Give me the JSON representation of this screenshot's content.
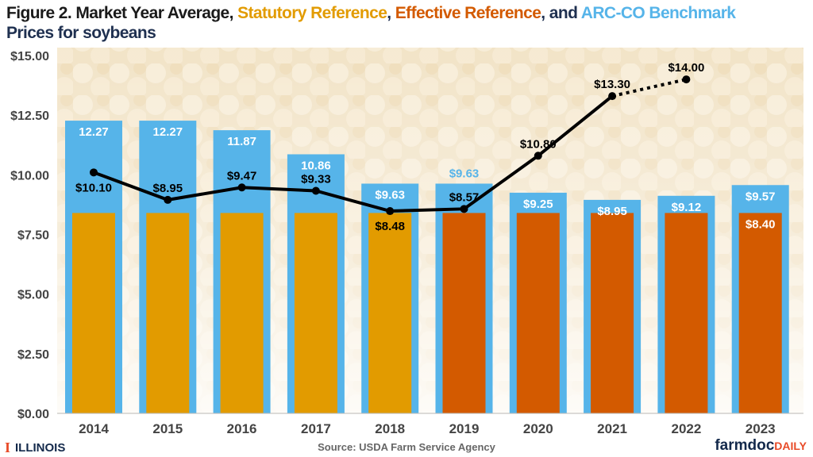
{
  "title": {
    "part1": "Figure 2. Market Year Average, ",
    "statutory": "Statutory Reference",
    "sep1": ", ",
    "effective": "Effective Reference",
    "sep2": ", and ",
    "arc": "ARC-CO Benchmark",
    "part2": "Prices for soybeans"
  },
  "footer": {
    "logo_left": "ILLINOIS",
    "source": "Source: USDA Farm Service Agency",
    "logo_right_a": "farmdoc",
    "logo_right_b": "DAILY"
  },
  "colors": {
    "statutory": "#e29b00",
    "effective": "#d35a00",
    "arc": "#56b4e9",
    "mya": "#000000",
    "title_dark": "#1f3050"
  },
  "chart_data": {
    "type": "bar+line",
    "categories": [
      "2014",
      "2015",
      "2016",
      "2017",
      "2018",
      "2019",
      "2020",
      "2021",
      "2022",
      "2023"
    ],
    "ylim": [
      0,
      15
    ],
    "yticks": [
      "$0.00",
      "$2.50",
      "$5.00",
      "$7.50",
      "$10.00",
      "$12.50",
      "$15.00"
    ],
    "ytick_values": [
      0,
      2.5,
      5,
      7.5,
      10,
      12.5,
      15
    ],
    "series": [
      {
        "key": "arc",
        "values": [
          12.27,
          12.27,
          11.87,
          10.86,
          9.63,
          9.63,
          9.25,
          8.95,
          9.12,
          9.57
        ],
        "labels": [
          "12.27",
          "12.27",
          "11.87",
          "10.86",
          "$9.63",
          "$9.63",
          "$9.25",
          "$8.95",
          "$9.12",
          "$9.57"
        ]
      },
      {
        "key": "statutory",
        "values": [
          8.4,
          8.4,
          8.4,
          8.4,
          8.4,
          null,
          null,
          null,
          null,
          null
        ]
      },
      {
        "key": "effective",
        "values": [
          null,
          null,
          null,
          null,
          null,
          8.4,
          8.4,
          8.4,
          8.4,
          8.4
        ]
      },
      {
        "key": "mya",
        "values": [
          10.1,
          8.95,
          9.47,
          9.33,
          8.48,
          8.57,
          10.8,
          13.3,
          14.0,
          null
        ],
        "labels": [
          "$10.10",
          "$8.95",
          "$9.47",
          "$9.33",
          "$8.48",
          "$8.57",
          "$10.80",
          "$13.30",
          "$14.00",
          ""
        ],
        "projected_from_index": 7
      }
    ],
    "extra_labels": [
      {
        "category": "2023",
        "series": "effective",
        "text": "$8.40"
      }
    ]
  }
}
